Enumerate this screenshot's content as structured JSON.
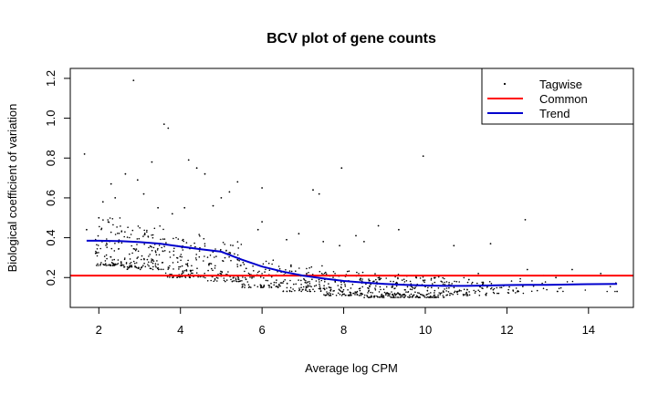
{
  "chart_data": {
    "type": "scatter",
    "title": "BCV plot of gene counts",
    "xlabel": "Average log CPM",
    "ylabel": "Biological coefficient of variation",
    "xlim": [
      1.3,
      15.1
    ],
    "ylim": [
      0.05,
      1.25
    ],
    "x_ticks": [
      2,
      4,
      6,
      8,
      10,
      12,
      14
    ],
    "y_ticks": [
      0.2,
      0.4,
      0.6,
      0.8,
      1.0,
      1.2
    ],
    "x_tick_labels": [
      "2",
      "4",
      "6",
      "8",
      "10",
      "12",
      "14"
    ],
    "y_tick_labels": [
      "0.2",
      "0.4",
      "0.6",
      "0.8",
      "1.0",
      "1.2"
    ],
    "grid": false,
    "legend": {
      "position": "top-right",
      "entries": [
        {
          "label": "Tagwise",
          "color": "#000000",
          "kind": "point"
        },
        {
          "label": "Common",
          "color": "#ff0000",
          "kind": "line"
        },
        {
          "label": "Trend",
          "color": "#0000cd",
          "kind": "line"
        }
      ]
    },
    "series": [
      {
        "name": "Common",
        "color": "#ff0000",
        "y": 0.21
      },
      {
        "name": "Trend",
        "color": "#0000cd",
        "x": [
          1.7,
          2.0,
          2.5,
          3.0,
          3.5,
          4.0,
          4.5,
          5.0,
          5.5,
          6.0,
          6.5,
          7.0,
          7.5,
          8.0,
          8.5,
          9.0,
          9.5,
          10.0,
          10.5,
          11.0,
          11.5,
          12.0,
          12.5,
          13.0,
          13.5,
          14.0,
          14.7
        ],
        "y": [
          0.385,
          0.385,
          0.383,
          0.378,
          0.37,
          0.356,
          0.342,
          0.33,
          0.29,
          0.255,
          0.23,
          0.21,
          0.195,
          0.183,
          0.175,
          0.168,
          0.163,
          0.16,
          0.158,
          0.158,
          0.16,
          0.162,
          0.163,
          0.163,
          0.165,
          0.167,
          0.168
        ]
      },
      {
        "name": "Tagwise",
        "color": "#000000",
        "points": [
          [
            1.65,
            0.82
          ],
          [
            2.85,
            1.19
          ],
          [
            3.6,
            0.97
          ],
          [
            3.7,
            0.95
          ],
          [
            3.3,
            0.78
          ],
          [
            4.2,
            0.79
          ],
          [
            4.4,
            0.75
          ],
          [
            4.6,
            0.72
          ],
          [
            2.95,
            0.69
          ],
          [
            2.65,
            0.72
          ],
          [
            7.95,
            0.75
          ],
          [
            9.95,
            0.81
          ],
          [
            2.3,
            0.67
          ],
          [
            5.4,
            0.68
          ],
          [
            6.0,
            0.65
          ],
          [
            7.25,
            0.64
          ],
          [
            7.4,
            0.62
          ],
          [
            5.2,
            0.63
          ],
          [
            3.1,
            0.62
          ],
          [
            2.4,
            0.6
          ],
          [
            2.1,
            0.58
          ],
          [
            5.0,
            0.6
          ],
          [
            4.1,
            0.55
          ],
          [
            4.8,
            0.56
          ],
          [
            12.45,
            0.49
          ],
          [
            3.45,
            0.55
          ],
          [
            3.8,
            0.52
          ],
          [
            2.0,
            0.5
          ],
          [
            6.0,
            0.48
          ],
          [
            8.85,
            0.46
          ],
          [
            9.35,
            0.44
          ],
          [
            11.6,
            0.37
          ],
          [
            13.6,
            0.24
          ],
          [
            12.5,
            0.24
          ],
          [
            6.9,
            0.42
          ],
          [
            8.3,
            0.41
          ],
          [
            6.6,
            0.39
          ],
          [
            7.5,
            0.38
          ],
          [
            10.7,
            0.36
          ],
          [
            5.9,
            0.44
          ],
          [
            8.5,
            0.38
          ],
          [
            7.9,
            0.36
          ],
          [
            14.3,
            0.22
          ],
          [
            14.7,
            0.13
          ],
          [
            11.3,
            0.22
          ],
          [
            12.9,
            0.21
          ],
          [
            13.2,
            0.2
          ],
          [
            1.7,
            0.44
          ]
        ],
        "cloud": [
          {
            "x": [
              1.9,
              2.6
            ],
            "y": [
              0.26,
              0.5
            ],
            "n": 95
          },
          {
            "x": [
              2.6,
              3.6
            ],
            "y": [
              0.24,
              0.46
            ],
            "n": 130
          },
          {
            "x": [
              3.6,
              4.6
            ],
            "y": [
              0.2,
              0.42
            ],
            "n": 120
          },
          {
            "x": [
              4.6,
              5.5
            ],
            "y": [
              0.18,
              0.38
            ],
            "n": 95
          },
          {
            "x": [
              5.5,
              6.5
            ],
            "y": [
              0.15,
              0.3
            ],
            "n": 90
          },
          {
            "x": [
              6.5,
              7.5
            ],
            "y": [
              0.13,
              0.27
            ],
            "n": 95
          },
          {
            "x": [
              7.5,
              8.5
            ],
            "y": [
              0.11,
              0.24
            ],
            "n": 120
          },
          {
            "x": [
              8.5,
              9.5
            ],
            "y": [
              0.1,
              0.22
            ],
            "n": 140
          },
          {
            "x": [
              9.5,
              10.5
            ],
            "y": [
              0.1,
              0.21
            ],
            "n": 120
          },
          {
            "x": [
              10.5,
              11.5
            ],
            "y": [
              0.11,
              0.2
            ],
            "n": 70
          },
          {
            "x": [
              11.5,
              12.5
            ],
            "y": [
              0.12,
              0.2
            ],
            "n": 35
          },
          {
            "x": [
              12.5,
              13.5
            ],
            "y": [
              0.13,
              0.2
            ],
            "n": 14
          },
          {
            "x": [
              13.5,
              14.7
            ],
            "y": [
              0.13,
              0.2
            ],
            "n": 6
          }
        ]
      }
    ]
  }
}
